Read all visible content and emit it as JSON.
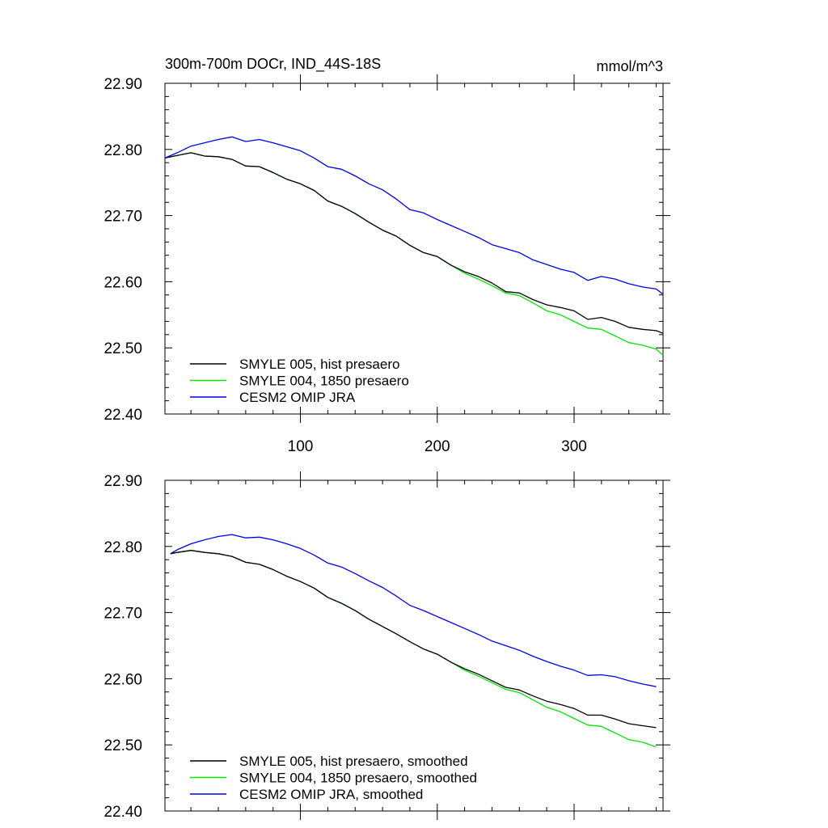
{
  "chart_data": [
    {
      "type": "line",
      "title": "300m-700m DOCr, IND_44S-18S",
      "units": "mmol/m^3",
      "xlim": [
        1,
        365
      ],
      "ylim": [
        22.4,
        22.9
      ],
      "xticks": [
        100,
        200,
        300
      ],
      "xtick_labels": [
        "100",
        "200",
        "300"
      ],
      "yticks": [
        22.4,
        22.5,
        22.6,
        22.7,
        22.8,
        22.9
      ],
      "ytick_labels": [
        "22.40",
        "22.50",
        "22.60",
        "22.70",
        "22.80",
        "22.90"
      ],
      "legend_position": "bottom-left",
      "series": [
        {
          "name": "SMYLE 005, hist presaero",
          "color": "#000000",
          "x": [
            1,
            10,
            20,
            30,
            40,
            50,
            60,
            70,
            80,
            90,
            100,
            110,
            120,
            130,
            140,
            150,
            160,
            170,
            180,
            190,
            200,
            210,
            220,
            230,
            240,
            250,
            260,
            270,
            280,
            290,
            300,
            310,
            320,
            330,
            340,
            350,
            360,
            365
          ],
          "y": [
            22.787,
            22.791,
            22.795,
            22.79,
            22.789,
            22.785,
            22.775,
            22.774,
            22.765,
            22.755,
            22.748,
            22.738,
            22.722,
            22.714,
            22.703,
            22.69,
            22.678,
            22.669,
            22.655,
            22.644,
            22.638,
            22.625,
            22.615,
            22.608,
            22.598,
            22.585,
            22.583,
            22.573,
            22.565,
            22.561,
            22.556,
            22.543,
            22.546,
            22.54,
            22.531,
            22.528,
            22.526,
            22.522
          ]
        },
        {
          "name": "SMYLE 004, 1850 presaero",
          "color": "#00e600",
          "x": [
            1,
            10,
            20,
            30,
            40,
            50,
            60,
            70,
            80,
            90,
            100,
            110,
            120,
            130,
            140,
            150,
            160,
            170,
            180,
            190,
            200,
            210,
            220,
            230,
            240,
            250,
            260,
            270,
            280,
            290,
            300,
            310,
            320,
            330,
            340,
            350,
            360,
            365
          ],
          "y": [
            22.787,
            22.791,
            22.795,
            22.79,
            22.789,
            22.785,
            22.775,
            22.774,
            22.765,
            22.755,
            22.748,
            22.738,
            22.722,
            22.714,
            22.703,
            22.69,
            22.678,
            22.669,
            22.655,
            22.644,
            22.638,
            22.625,
            22.613,
            22.604,
            22.594,
            22.583,
            22.579,
            22.568,
            22.556,
            22.55,
            22.54,
            22.53,
            22.528,
            22.518,
            22.508,
            22.504,
            22.498,
            22.489
          ]
        },
        {
          "name": "CESM2 OMIP JRA",
          "color": "#0000e6",
          "x": [
            1,
            10,
            20,
            30,
            40,
            50,
            60,
            70,
            80,
            90,
            100,
            110,
            120,
            130,
            140,
            150,
            160,
            170,
            180,
            190,
            200,
            210,
            220,
            230,
            240,
            250,
            260,
            270,
            280,
            290,
            300,
            310,
            320,
            330,
            340,
            350,
            360,
            365
          ],
          "y": [
            22.787,
            22.795,
            22.805,
            22.81,
            22.815,
            22.819,
            22.812,
            22.815,
            22.81,
            22.804,
            22.798,
            22.787,
            22.774,
            22.77,
            22.76,
            22.748,
            22.739,
            22.725,
            22.709,
            22.704,
            22.694,
            22.685,
            22.676,
            22.667,
            22.656,
            22.65,
            22.644,
            22.633,
            22.626,
            22.619,
            22.614,
            22.602,
            22.608,
            22.604,
            22.597,
            22.592,
            22.589,
            22.581
          ]
        }
      ]
    },
    {
      "type": "line",
      "xlim": [
        1,
        365
      ],
      "ylim": [
        22.4,
        22.9
      ],
      "xticks": [
        100,
        200,
        300
      ],
      "yticks": [
        22.4,
        22.5,
        22.6,
        22.7,
        22.8,
        22.9
      ],
      "ytick_labels": [
        "22.40",
        "22.50",
        "22.60",
        "22.70",
        "22.80",
        "22.90"
      ],
      "legend_position": "bottom-left",
      "series": [
        {
          "name": "SMYLE 005, hist presaero, smoothed",
          "color": "#000000",
          "x": [
            5,
            10,
            20,
            30,
            40,
            50,
            60,
            70,
            80,
            90,
            100,
            110,
            120,
            130,
            140,
            150,
            160,
            170,
            180,
            190,
            200,
            210,
            220,
            230,
            240,
            250,
            260,
            270,
            280,
            290,
            300,
            310,
            320,
            330,
            340,
            350,
            360
          ],
          "y": [
            22.789,
            22.791,
            22.794,
            22.791,
            22.789,
            22.785,
            22.776,
            22.773,
            22.765,
            22.755,
            22.747,
            22.737,
            22.723,
            22.714,
            22.703,
            22.69,
            22.679,
            22.668,
            22.656,
            22.645,
            22.637,
            22.625,
            22.615,
            22.607,
            22.597,
            22.587,
            22.583,
            22.574,
            22.566,
            22.561,
            22.555,
            22.545,
            22.545,
            22.539,
            22.532,
            22.529,
            22.526
          ]
        },
        {
          "name": "SMYLE 004, 1850 presaero, smoothed",
          "color": "#00e600",
          "x": [
            5,
            10,
            20,
            30,
            40,
            50,
            60,
            70,
            80,
            90,
            100,
            110,
            120,
            130,
            140,
            150,
            160,
            170,
            180,
            190,
            200,
            210,
            220,
            230,
            240,
            250,
            260,
            270,
            280,
            290,
            300,
            310,
            320,
            330,
            340,
            350,
            360
          ],
          "y": [
            22.789,
            22.791,
            22.794,
            22.791,
            22.789,
            22.785,
            22.776,
            22.773,
            22.765,
            22.755,
            22.747,
            22.737,
            22.723,
            22.714,
            22.703,
            22.69,
            22.679,
            22.668,
            22.656,
            22.645,
            22.637,
            22.625,
            22.613,
            22.604,
            22.594,
            22.584,
            22.579,
            22.568,
            22.557,
            22.55,
            22.54,
            22.53,
            22.528,
            22.518,
            22.508,
            22.504,
            22.497
          ]
        },
        {
          "name": "CESM2 OMIP JRA, smoothed",
          "color": "#0000e6",
          "x": [
            5,
            10,
            20,
            30,
            40,
            50,
            60,
            70,
            80,
            90,
            100,
            110,
            120,
            130,
            140,
            150,
            160,
            170,
            180,
            190,
            200,
            210,
            220,
            230,
            240,
            250,
            260,
            270,
            280,
            290,
            300,
            310,
            320,
            330,
            340,
            350,
            360
          ],
          "y": [
            22.789,
            22.795,
            22.804,
            22.81,
            22.815,
            22.818,
            22.813,
            22.814,
            22.81,
            22.804,
            22.797,
            22.787,
            22.775,
            22.769,
            22.759,
            22.748,
            22.738,
            22.725,
            22.711,
            22.703,
            22.694,
            22.685,
            22.676,
            22.667,
            22.657,
            22.65,
            22.643,
            22.634,
            22.626,
            22.619,
            22.613,
            22.605,
            22.606,
            22.603,
            22.597,
            22.592,
            22.588
          ]
        }
      ]
    }
  ]
}
